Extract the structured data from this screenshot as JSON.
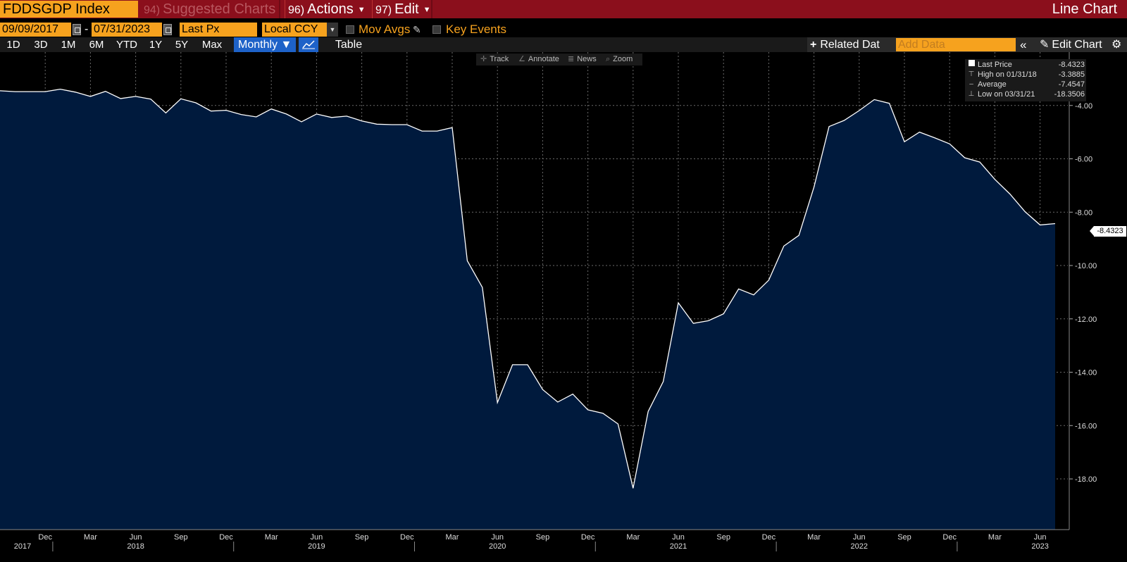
{
  "header": {
    "ticker": "FDDSGDP Index",
    "suggested": {
      "num": "94)",
      "label": "Suggested Charts"
    },
    "actions": {
      "num": "96)",
      "label": "Actions"
    },
    "edit": {
      "num": "97)",
      "label": "Edit"
    },
    "chart_type_title": "Line Chart"
  },
  "controls": {
    "start_date": "09/09/2017",
    "range_dash": "-",
    "end_date": "07/31/2023",
    "field": "Last Px",
    "currency": "Local CCY",
    "mov_avgs": "Mov Avgs",
    "key_events": "Key Events"
  },
  "periods": [
    "1D",
    "3D",
    "1M",
    "6M",
    "YTD",
    "1Y",
    "5Y",
    "Max"
  ],
  "frequency": "Monthly ▼",
  "table_label": "Table",
  "right_controls": {
    "related": "Related Dat",
    "add_data_placeholder": "Add Data",
    "collapse": "«",
    "edit_chart": "Edit Chart"
  },
  "tools": [
    "Track",
    "Annotate",
    "News",
    "Zoom"
  ],
  "legend": [
    {
      "label": "Last Price",
      "value": "-8.4323"
    },
    {
      "label": "High on 01/31/18",
      "value": "-3.3885"
    },
    {
      "label": "Average",
      "value": "-7.4547"
    },
    {
      "label": "Low on 03/31/21",
      "value": "-18.3506"
    }
  ],
  "last_value_tag": "-8.4323",
  "colors": {
    "accent": "#f6a21e",
    "header": "#8b0f1c",
    "area": "#001a3d",
    "line": "#ffffff",
    "active": "#1e62c8"
  },
  "chart_data": {
    "type": "area",
    "ylim": [
      -19.9,
      -2.0
    ],
    "y_ticks": [
      "-4.00",
      "-6.00",
      "-8.00",
      "-10.00",
      "-12.00",
      "-14.00",
      "-16.00",
      "-18.00"
    ],
    "y_tick_values": [
      -4,
      -6,
      -8,
      -10,
      -12,
      -14,
      -16,
      -18
    ],
    "x_month_ticks": [
      {
        "label": "Dec",
        "date": "2017-12"
      },
      {
        "label": "Mar",
        "date": "2018-03"
      },
      {
        "label": "Jun",
        "date": "2018-06"
      },
      {
        "label": "Sep",
        "date": "2018-09"
      },
      {
        "label": "Dec",
        "date": "2018-12"
      },
      {
        "label": "Mar",
        "date": "2019-03"
      },
      {
        "label": "Jun",
        "date": "2019-06"
      },
      {
        "label": "Sep",
        "date": "2019-09"
      },
      {
        "label": "Dec",
        "date": "2019-12"
      },
      {
        "label": "Mar",
        "date": "2020-03"
      },
      {
        "label": "Jun",
        "date": "2020-06"
      },
      {
        "label": "Sep",
        "date": "2020-09"
      },
      {
        "label": "Dec",
        "date": "2020-12"
      },
      {
        "label": "Mar",
        "date": "2021-03"
      },
      {
        "label": "Jun",
        "date": "2021-06"
      },
      {
        "label": "Sep",
        "date": "2021-09"
      },
      {
        "label": "Dec",
        "date": "2021-12"
      },
      {
        "label": "Mar",
        "date": "2022-03"
      },
      {
        "label": "Jun",
        "date": "2022-06"
      },
      {
        "label": "Sep",
        "date": "2022-09"
      },
      {
        "label": "Dec",
        "date": "2022-12"
      },
      {
        "label": "Mar",
        "date": "2023-03"
      },
      {
        "label": "Jun",
        "date": "2023-06"
      }
    ],
    "x_year_ticks": [
      {
        "label": "2017",
        "date": "2017-09"
      },
      {
        "label": "2018",
        "date": "2018-06"
      },
      {
        "label": "2019",
        "date": "2019-06"
      },
      {
        "label": "2020",
        "date": "2020-06"
      },
      {
        "label": "2021",
        "date": "2021-06"
      },
      {
        "label": "2022",
        "date": "2022-06"
      },
      {
        "label": "2023",
        "date": "2023-06"
      }
    ],
    "x": [
      "2017-09",
      "2017-10",
      "2017-11",
      "2017-12",
      "2018-01",
      "2018-02",
      "2018-03",
      "2018-04",
      "2018-05",
      "2018-06",
      "2018-07",
      "2018-08",
      "2018-09",
      "2018-10",
      "2018-11",
      "2018-12",
      "2019-01",
      "2019-02",
      "2019-03",
      "2019-04",
      "2019-05",
      "2019-06",
      "2019-07",
      "2019-08",
      "2019-09",
      "2019-10",
      "2019-11",
      "2019-12",
      "2020-01",
      "2020-02",
      "2020-03",
      "2020-04",
      "2020-05",
      "2020-06",
      "2020-07",
      "2020-08",
      "2020-09",
      "2020-10",
      "2020-11",
      "2020-12",
      "2021-01",
      "2021-02",
      "2021-03",
      "2021-04",
      "2021-05",
      "2021-06",
      "2021-07",
      "2021-08",
      "2021-09",
      "2021-10",
      "2021-11",
      "2021-12",
      "2022-01",
      "2022-02",
      "2022-03",
      "2022-04",
      "2022-05",
      "2022-06",
      "2022-07",
      "2022-08",
      "2022-09",
      "2022-10",
      "2022-11",
      "2022-12",
      "2023-01",
      "2023-02",
      "2023-03",
      "2023-04",
      "2023-05",
      "2023-06",
      "2023-07"
    ],
    "series": [
      {
        "values": [
          -3.45,
          -3.48,
          -3.48,
          -3.48,
          -3.39,
          -3.5,
          -3.66,
          -3.47,
          -3.74,
          -3.66,
          -3.76,
          -4.28,
          -3.75,
          -3.9,
          -4.21,
          -4.18,
          -4.34,
          -4.43,
          -4.13,
          -4.32,
          -4.61,
          -4.32,
          -4.45,
          -4.4,
          -4.58,
          -4.7,
          -4.72,
          -4.72,
          -4.96,
          -4.96,
          -4.83,
          -9.82,
          -10.82,
          -15.14,
          -13.72,
          -13.72,
          -14.65,
          -15.12,
          -14.82,
          -15.41,
          -15.54,
          -15.94,
          -18.35,
          -15.47,
          -14.35,
          -11.4,
          -12.17,
          -12.07,
          -11.81,
          -10.88,
          -11.1,
          -10.55,
          -9.27,
          -8.87,
          -7.06,
          -4.79,
          -4.56,
          -4.19,
          -3.78,
          -3.92,
          -5.36,
          -5.0,
          -5.21,
          -5.44,
          -5.96,
          -6.12,
          -6.77,
          -7.32,
          -7.98,
          -8.48,
          -8.43
        ]
      }
    ]
  }
}
